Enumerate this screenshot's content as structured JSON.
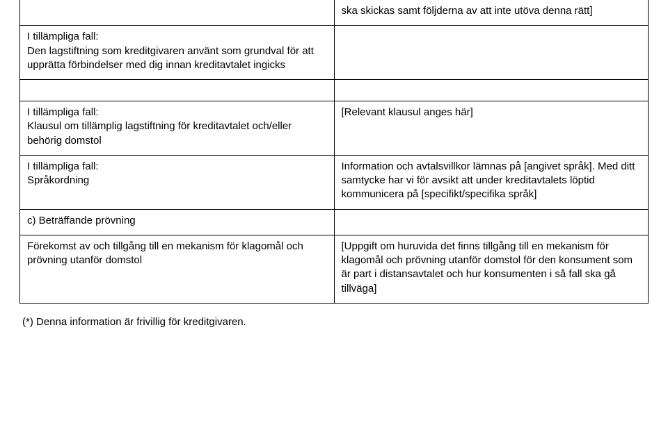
{
  "row1": {
    "right": "ska skickas samt följderna av att inte utöva denna rätt]"
  },
  "row2": {
    "left": "I tillämpliga fall:\nDen lagstiftning som kreditgivaren använt som grundval för att upprätta förbindelser med dig innan kreditavtalet ingicks"
  },
  "row3": {
    "left": "I tillämpliga fall:\nKlausul om tillämplig lagstiftning för kreditavtalet och/eller behörig domstol",
    "right": "[Relevant klausul anges här]"
  },
  "row4": {
    "left": "I tillämpliga fall:\nSpråkordning",
    "right": "Information och avtalsvillkor lämnas på [angivet språk]. Med ditt samtycke har vi för avsikt att under kreditavtalets löptid kommunicera på [specifikt/specifika språk]"
  },
  "row5": {
    "left": "c) Beträffande prövning"
  },
  "row6": {
    "left": "Förekomst av och tillgång till en mekanism för klagomål och prövning utanför domstol",
    "right": "[Uppgift om huruvida det finns tillgång till en mekanism för klagomål och prövning utanför domstol för den konsument som är part i distansavtalet och hur konsumenten i så fall ska gå tillväga]"
  },
  "footnote": "(*) Denna information är frivillig för kreditgivaren."
}
